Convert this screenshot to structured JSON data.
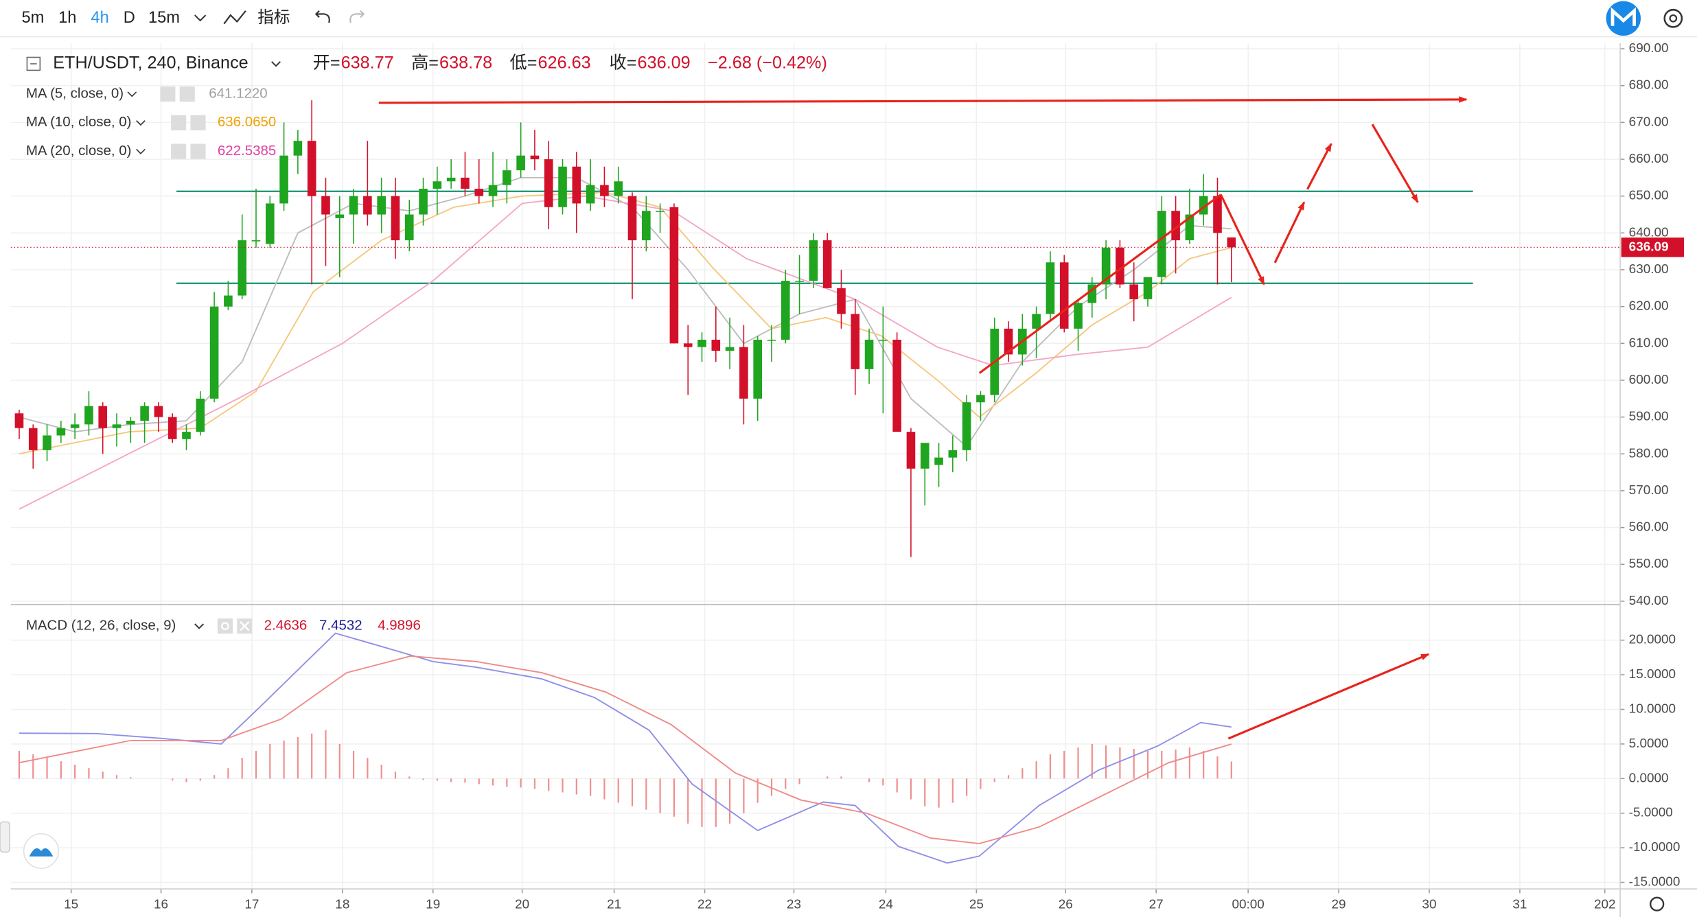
{
  "toolbar": {
    "intervals": [
      "5m",
      "1h",
      "4h",
      "D",
      "15m"
    ],
    "active_index": 2,
    "indicators": "指标"
  },
  "chart_data": [
    {
      "type": "candlestick",
      "title": "ETH/USDT, 240, Binance",
      "ohlc_labels": [
        {
          "label": "开=",
          "value": "638.77"
        },
        {
          "label": "高=",
          "value": "638.78"
        },
        {
          "label": "低=",
          "value": "626.63"
        },
        {
          "label": "收=",
          "value": "636.09"
        }
      ],
      "change": "−2.68 (−0.42%)",
      "open": [
        591,
        587,
        581,
        585,
        587,
        588,
        593,
        587,
        588,
        589,
        593,
        590,
        584,
        586,
        595,
        620,
        623,
        638,
        637,
        648,
        661,
        665,
        650,
        644,
        645,
        650,
        645,
        650,
        638,
        645,
        652,
        654,
        655,
        652,
        650,
        653,
        657,
        661,
        660,
        647,
        658,
        648,
        653,
        650,
        650,
        638,
        646,
        647,
        610,
        609,
        611,
        608,
        609,
        595,
        611,
        611,
        627,
        627,
        638,
        625,
        618,
        603,
        611,
        611,
        586,
        576,
        577,
        579,
        581,
        594,
        596,
        614,
        607,
        614,
        618,
        632,
        614,
        621,
        626,
        636,
        626,
        622,
        628,
        646,
        638,
        645,
        650,
        638.77
      ],
      "high": [
        592,
        588,
        588,
        589,
        591,
        597,
        594,
        591,
        590,
        594,
        594,
        591,
        588,
        597,
        624,
        627,
        645,
        652,
        650,
        670,
        668,
        676,
        655,
        650,
        652,
        665,
        655,
        655,
        649,
        655,
        658,
        660,
        662,
        660,
        662,
        660,
        670,
        668,
        665,
        660,
        662,
        660,
        658,
        658,
        651,
        650,
        648,
        648,
        615,
        613,
        620,
        617,
        615,
        612,
        615,
        630,
        634,
        640,
        640,
        630,
        622,
        614,
        620,
        613,
        587,
        582,
        583,
        585,
        596,
        597,
        617,
        616,
        618,
        620,
        635,
        634,
        622,
        628,
        638,
        638,
        632,
        628,
        650,
        650,
        652,
        656,
        655,
        638.78
      ],
      "low": [
        584,
        576,
        578,
        583,
        584,
        585,
        580,
        582,
        583,
        583,
        586,
        583,
        581,
        585,
        594,
        619,
        622,
        636,
        636,
        646,
        656,
        626,
        631,
        628,
        637,
        642,
        640,
        633,
        635,
        642,
        645,
        652,
        650,
        648,
        647,
        648,
        655,
        657,
        641,
        645,
        640,
        646,
        647,
        648,
        622,
        635,
        640,
        610,
        596,
        605,
        605,
        603,
        588,
        589,
        605,
        610,
        618,
        625,
        625,
        614,
        596,
        599,
        591,
        586,
        552,
        566,
        571,
        575,
        578,
        589,
        594,
        605,
        604,
        606,
        616,
        613,
        608,
        617,
        622,
        625,
        616,
        620,
        626,
        629,
        637,
        642,
        626,
        626.63
      ],
      "close": [
        587,
        581,
        585,
        587,
        588,
        593,
        587,
        588,
        589,
        593,
        590,
        584,
        586,
        595,
        620,
        623,
        638,
        638,
        648,
        661,
        665,
        650,
        645,
        645,
        650,
        645,
        650,
        638,
        645,
        652,
        654,
        655,
        652,
        650,
        653,
        657,
        661,
        660,
        647,
        658,
        648,
        653,
        650,
        654,
        638,
        646,
        646,
        610,
        609,
        611,
        608,
        609,
        595,
        611,
        611,
        627,
        627,
        638,
        625,
        618,
        603,
        611,
        611,
        586,
        576,
        583,
        579,
        581,
        594,
        596,
        614,
        607,
        614,
        618,
        632,
        614,
        621,
        626,
        636,
        626,
        622,
        628,
        646,
        638,
        645,
        650,
        640,
        636.09
      ],
      "up_color": "#1fa51f",
      "down_color": "#d3102a",
      "last_price": {
        "value": 636.09,
        "label": "636.09"
      },
      "ma": [
        {
          "name": "MA (5, close, 0)",
          "value_label": "641.1220",
          "color": "#bdbdbd",
          "label_color": "#9e9e9e",
          "x": [
            0,
            4,
            8,
            12,
            16,
            20,
            24,
            28,
            32,
            36,
            40,
            44,
            48,
            52,
            56,
            60,
            64,
            68,
            72,
            76,
            80,
            84,
            87
          ],
          "values": [
            590,
            586,
            588,
            589,
            605,
            640,
            648,
            646,
            650,
            655,
            655,
            647,
            630,
            610,
            618,
            622,
            595,
            582,
            605,
            620,
            630,
            642,
            641.1
          ]
        },
        {
          "name": "MA (10, close, 0)",
          "value_label": "636.0650",
          "color": "#f5c77e",
          "label_color": "#f0a300",
          "x": [
            0,
            7.9,
            13,
            17,
            21.1,
            26,
            31.2,
            36.1,
            42.1,
            46,
            49.9,
            54,
            57.9,
            61.9,
            65.9,
            68.9,
            73,
            77,
            81,
            84,
            87
          ],
          "values": [
            580,
            586,
            587,
            597,
            624,
            638,
            647,
            650,
            651,
            647,
            630,
            614,
            617,
            612,
            600,
            590,
            602,
            615,
            624,
            633,
            636
          ]
        },
        {
          "name": "MA (20, close, 0)",
          "value_label": "622.5385",
          "color": "#f4a6c8",
          "label_color": "#e040a0",
          "x": [
            0,
            15.7,
            23.2,
            29.7,
            36.1,
            40.6,
            46.9,
            52.2,
            60,
            65.9,
            69.9,
            75.9,
            81,
            87
          ],
          "values": [
            565,
            595,
            610,
            627,
            648,
            650,
            646,
            633,
            622,
            609,
            604,
            607,
            609,
            622.5
          ]
        }
      ],
      "xlim": [
        -0.6,
        114.9
      ],
      "ylim": [
        539.4,
        691.5
      ],
      "yticks": [
        {
          "value": 540,
          "label": "540.00"
        },
        {
          "value": 550,
          "label": "550.00"
        },
        {
          "value": 560,
          "label": "560.00"
        },
        {
          "value": 570,
          "label": "570.00"
        },
        {
          "value": 580,
          "label": "580.00"
        },
        {
          "value": 590,
          "label": "590.00"
        },
        {
          "value": 600,
          "label": "600.00"
        },
        {
          "value": 610,
          "label": "610.00"
        },
        {
          "value": 620,
          "label": "620.00"
        },
        {
          "value": 630,
          "label": "630.00"
        },
        {
          "value": 640,
          "label": "640.00"
        },
        {
          "value": 650,
          "label": "650.00"
        },
        {
          "value": 660,
          "label": "660.00"
        },
        {
          "value": 670,
          "label": "670.00"
        },
        {
          "value": 680,
          "label": "680.00"
        },
        {
          "value": 690,
          "label": "690.00"
        }
      ],
      "grid": true
    },
    {
      "type": "macd",
      "title": "MACD (12, 26, close, 9)",
      "series": [
        {
          "kind": "histogram",
          "color": "#ef8f8f",
          "label_color": "#d3102a",
          "value_label": "2.4636",
          "values": [
            4,
            3.5,
            3,
            2.5,
            2,
            1.5,
            1,
            0.5,
            0.2,
            0,
            0,
            -0.3,
            -0.5,
            -0.3,
            0.5,
            1.5,
            3,
            4,
            5,
            5.5,
            6,
            6.5,
            7,
            5,
            4,
            3,
            2,
            1,
            0.3,
            -0.2,
            -0.3,
            -0.5,
            -0.6,
            -0.8,
            -1,
            -1.2,
            -1.3,
            -1.5,
            -1.8,
            -2,
            -2.3,
            -2.5,
            -3,
            -3.5,
            -4,
            -4.5,
            -5,
            -5.5,
            -6.5,
            -7,
            -7,
            -6.5,
            -5,
            -3.5,
            -2.5,
            -1.5,
            -0.8,
            0,
            0.3,
            0.3,
            0,
            -0.5,
            -1,
            -2,
            -3,
            -4,
            -4.2,
            -3.5,
            -2.5,
            -1.5,
            -0.5,
            0.5,
            1.5,
            2.5,
            3.5,
            4,
            4.5,
            5,
            4.8,
            4.5,
            4.3,
            4,
            4,
            4.2,
            4.5,
            4,
            3.2,
            2.4636
          ]
        },
        {
          "kind": "line",
          "color": "#8f8fe8",
          "label_color": "#1a1a9c",
          "value_label": "7.4532",
          "x": [
            0,
            5.6,
            10.3,
            14.5,
            17.2,
            22.7,
            25.8,
            29.7,
            32.8,
            37.5,
            41.3,
            45.2,
            48.3,
            53,
            57.7,
            60,
            63.1,
            66.6,
            68.9,
            73.2,
            77.5,
            81.7,
            84.8,
            87
          ],
          "values": [
            6.56,
            6.5,
            5.8,
            5,
            10.2,
            21,
            19.2,
            16.9,
            16.1,
            14.4,
            11.7,
            7,
            -0.8,
            -7.5,
            -3.4,
            -3.9,
            -9.8,
            -12.2,
            -11.2,
            -3.9,
            1.25,
            4.7,
            8.1,
            7.4532
          ]
        },
        {
          "kind": "line",
          "color": "#f08a8a",
          "label_color": "#d3102a",
          "value_label": "4.9896",
          "x": [
            0,
            8,
            14.5,
            18.8,
            23.5,
            28.1,
            32.8,
            37.5,
            42.1,
            46.8,
            51.4,
            56.1,
            60.8,
            65.4,
            68.9,
            73.2,
            77.9,
            82.5,
            87
          ],
          "values": [
            2.3,
            5.5,
            5.5,
            8.6,
            15.3,
            17.7,
            16.9,
            15.3,
            12.5,
            7.8,
            0.8,
            -3.1,
            -5,
            -8.6,
            -9.4,
            -7,
            -2.3,
            2.3,
            4.9896
          ]
        }
      ],
      "xlim": [
        -0.6,
        114.9
      ],
      "ylim": [
        -15.94,
        25
      ],
      "yticks": [
        {
          "value": -15,
          "label": "-15.0000"
        },
        {
          "value": -10,
          "label": "-10.0000"
        },
        {
          "value": -5,
          "label": "-5.0000"
        },
        {
          "value": 0,
          "label": "0.0000"
        },
        {
          "value": 5,
          "label": "5.0000"
        },
        {
          "value": 10,
          "label": "10.0000"
        },
        {
          "value": 15,
          "label": "15.0000"
        },
        {
          "value": 20,
          "label": "20.0000"
        }
      ],
      "xticks": [
        {
          "value": 3.73,
          "label": "15"
        },
        {
          "value": 10.18,
          "label": "16"
        },
        {
          "value": 16.7,
          "label": "17"
        },
        {
          "value": 23.2,
          "label": "18"
        },
        {
          "value": 29.7,
          "label": "19"
        },
        {
          "value": 36.1,
          "label": "20"
        },
        {
          "value": 42.7,
          "label": "21"
        },
        {
          "value": 49.2,
          "label": "22"
        },
        {
          "value": 55.6,
          "label": "23"
        },
        {
          "value": 62.2,
          "label": "24"
        },
        {
          "value": 68.7,
          "label": "25"
        },
        {
          "value": 75.1,
          "label": "26"
        },
        {
          "value": 81.6,
          "label": "27"
        },
        {
          "value": 88.2,
          "label": "00:00"
        },
        {
          "value": 94.7,
          "label": "29"
        },
        {
          "value": 101.2,
          "label": "30"
        },
        {
          "value": 107.7,
          "label": "31"
        },
        {
          "value": 113.8,
          "label": "202"
        }
      ],
      "grid": true
    }
  ]
}
